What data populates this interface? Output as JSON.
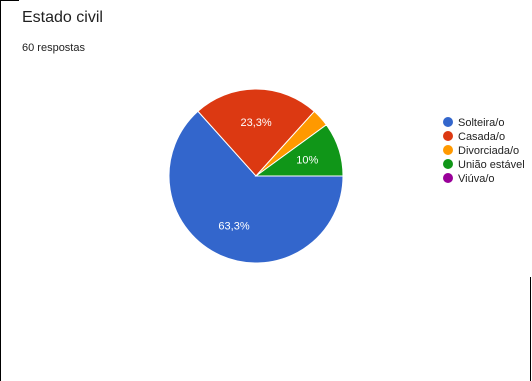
{
  "header": {
    "title": "Estado civil",
    "subtitle": "60 respostas"
  },
  "chart_data": {
    "type": "pie",
    "title": "Estado civil",
    "subtitle": "60 respostas",
    "slices": [
      {
        "label": "Solteira/o",
        "percent": 63.3,
        "display": "63,3%",
        "color": "#3366cc"
      },
      {
        "label": "Casada/o",
        "percent": 23.3,
        "display": "23,3%",
        "color": "#dc3912"
      },
      {
        "label": "Divorciada/o",
        "percent": 3.3,
        "display": "",
        "color": "#ff9900"
      },
      {
        "label": "União estável",
        "percent": 10,
        "display": "10%",
        "color": "#109618"
      },
      {
        "label": "Viúva/o",
        "percent": 0,
        "display": "",
        "color": "#990099"
      }
    ],
    "legend_position": "right"
  }
}
